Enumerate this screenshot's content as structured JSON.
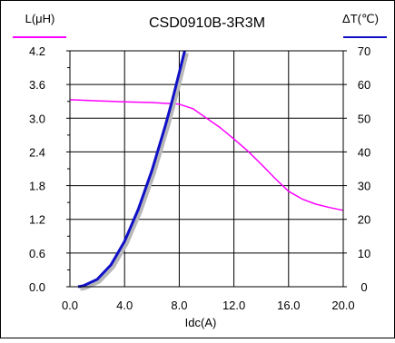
{
  "chart_data": {
    "type": "line",
    "title": "CSD0910B-3R3M",
    "xlabel": "Idc(A)",
    "ylabel_left": "L(μH)",
    "ylabel_right": "ΔT(℃)",
    "xlim": [
      0,
      20
    ],
    "ylim_left": [
      0,
      4.2
    ],
    "ylim_right": [
      0,
      70
    ],
    "x_ticks": [
      "0.0",
      "4.0",
      "8.0",
      "12.0",
      "16.0",
      "20.0"
    ],
    "y_left_ticks": [
      "0.0",
      "0.6",
      "1.2",
      "1.8",
      "2.4",
      "3.0",
      "3.6",
      "4.2"
    ],
    "y_right_ticks": [
      "0",
      "10",
      "20",
      "30",
      "40",
      "50",
      "60",
      "70"
    ],
    "grid": true,
    "series": [
      {
        "name": "L(μH)",
        "axis": "left",
        "color": "#ff00ff",
        "x": [
          0,
          2,
          4,
          6,
          8,
          9,
          10,
          11,
          12,
          13,
          14,
          15,
          16,
          17,
          18,
          19,
          20
        ],
        "y": [
          3.33,
          3.31,
          3.29,
          3.28,
          3.25,
          3.17,
          3.0,
          2.83,
          2.63,
          2.42,
          2.18,
          1.93,
          1.7,
          1.56,
          1.47,
          1.41,
          1.36
        ]
      },
      {
        "name": "ΔT(℃)",
        "axis": "right",
        "color": "#1010c8",
        "x": [
          0.6,
          1,
          2,
          3,
          4,
          5,
          6,
          7,
          7.5,
          8,
          8.4
        ],
        "y": [
          0,
          0.3,
          2.2,
          6.5,
          13.5,
          23,
          34.5,
          48,
          55.5,
          63.5,
          70
        ]
      }
    ]
  }
}
